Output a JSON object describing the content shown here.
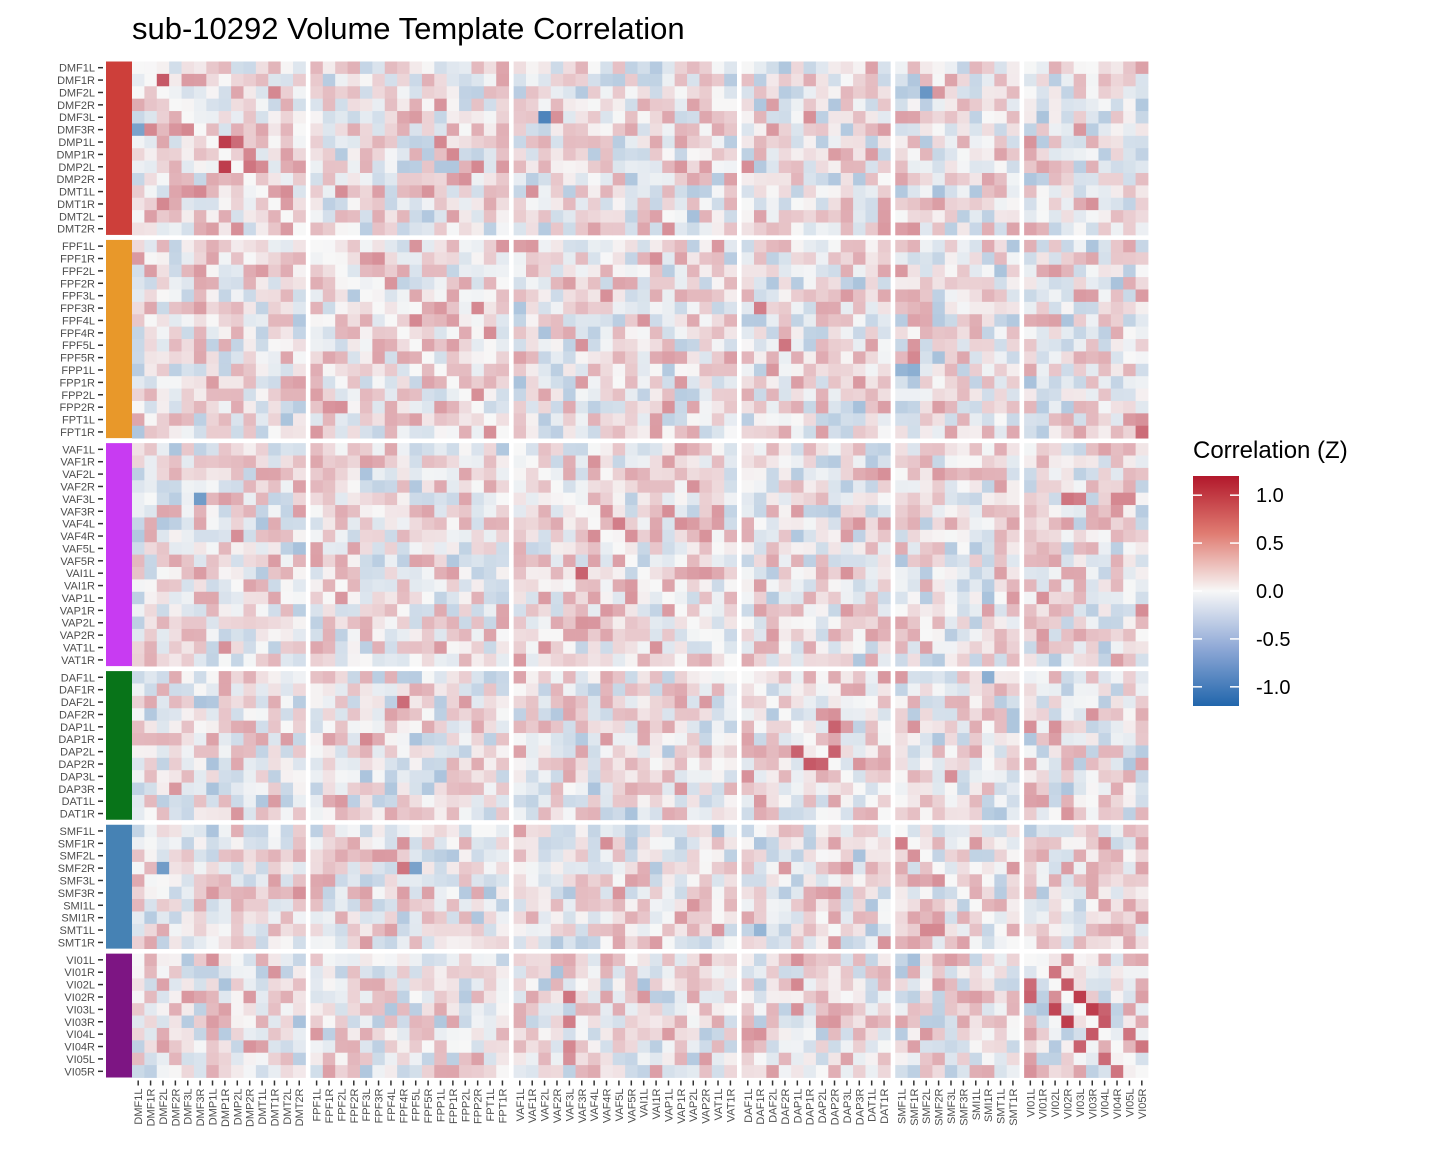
{
  "chart_data": {
    "type": "heatmap",
    "title": "sub-10292 Volume Template Correlation",
    "labels": [
      "DMF1L",
      "DMF1R",
      "DMF2L",
      "DMF2R",
      "DMF3L",
      "DMF3R",
      "DMP1L",
      "DMP1R",
      "DMP2L",
      "DMP2R",
      "DMT1L",
      "DMT1R",
      "DMT2L",
      "DMT2R",
      "FPF1L",
      "FPF1R",
      "FPF2L",
      "FPF2R",
      "FPF3L",
      "FPF3R",
      "FPF4L",
      "FPF4R",
      "FPF5L",
      "FPF5R",
      "FPP1L",
      "FPP1R",
      "FPP2L",
      "FPP2R",
      "FPT1L",
      "FPT1R",
      "VAF1L",
      "VAF1R",
      "VAF2L",
      "VAF2R",
      "VAF3L",
      "VAF3R",
      "VAF4L",
      "VAF4R",
      "VAF5L",
      "VAF5R",
      "VAI1L",
      "VAI1R",
      "VAP1L",
      "VAP1R",
      "VAP2L",
      "VAP2R",
      "VAT1L",
      "VAT1R",
      "DAF1L",
      "DAF1R",
      "DAF2L",
      "DAF2R",
      "DAP1L",
      "DAP1R",
      "DAP2L",
      "DAP2R",
      "DAP3L",
      "DAP3R",
      "DAT1L",
      "DAT1R",
      "SMF1L",
      "SMF1R",
      "SMF2L",
      "SMF2R",
      "SMF3L",
      "SMF3R",
      "SMI1L",
      "SMI1R",
      "SMT1L",
      "SMT1R",
      "VI01L",
      "VI01R",
      "VI02L",
      "VI02R",
      "VI03L",
      "VI03R",
      "VI04L",
      "VI04R",
      "VI05L",
      "VI05R"
    ],
    "groups": [
      {
        "count": 14,
        "color": "#cd3f3a"
      },
      {
        "count": 16,
        "color": "#e8982a"
      },
      {
        "count": 18,
        "color": "#c83bf2"
      },
      {
        "count": 12,
        "color": "#087419"
      },
      {
        "count": 10,
        "color": "#4682b4"
      },
      {
        "count": 10,
        "color": "#7d1583"
      }
    ],
    "color_scale": {
      "low": "#2166ac",
      "mid": "#f7f7f7",
      "high": "#b2182b",
      "limits": [
        -1.2,
        1.2
      ]
    },
    "legend": {
      "title": "Correlation (Z)",
      "position": "right",
      "ticks": [
        1.0,
        0.5,
        0.0,
        -0.5,
        -1.0
      ],
      "tick_labels": [
        "1.0",
        "0.5",
        "0.0",
        "-0.5",
        "-1.0"
      ]
    },
    "highlights": [
      {
        "r": "DMF1R",
        "c": "DMF2L",
        "v": 0.85
      },
      {
        "r": "DMF3L",
        "c": "VAF2L",
        "v": -0.95
      },
      {
        "r": "DMF3R",
        "c": "DMF1L",
        "v": -0.7
      },
      {
        "r": "DMF2L",
        "c": "SMF2L",
        "v": -0.8
      },
      {
        "r": "DMP1L",
        "c": "DMP1R",
        "v": 1.0
      },
      {
        "r": "DMP1L",
        "c": "DMP2L",
        "v": 0.75
      },
      {
        "r": "DMP1R",
        "c": "DMP2R",
        "v": 0.6
      },
      {
        "r": "DMP2L",
        "c": "DMP1R",
        "v": 1.0
      },
      {
        "r": "DMP2L",
        "c": "DMP2R",
        "v": 0.7
      },
      {
        "r": "DMP1L",
        "c": "FPP1L",
        "v": 0.6
      },
      {
        "r": "DMP1R",
        "c": "FPP1R",
        "v": 0.6
      },
      {
        "r": "DMP2L",
        "c": "FPP2R",
        "v": 0.6
      },
      {
        "r": "DMP2R",
        "c": "FPP2L",
        "v": 0.55
      },
      {
        "r": "DMT1L",
        "c": "VAF1R",
        "v": 0.55
      },
      {
        "r": "FPF3R",
        "c": "FPP2R",
        "v": 0.6
      },
      {
        "r": "FPF3R",
        "c": "DAF1R",
        "v": 0.65
      },
      {
        "r": "FPF5L",
        "c": "DAF2R",
        "v": 0.7
      },
      {
        "r": "FPF5L",
        "c": "VAF3R",
        "v": 0.55
      },
      {
        "r": "FPF5R",
        "c": "SMF1R",
        "v": 0.6
      },
      {
        "r": "FPP1L",
        "c": "SMF1L",
        "v": -0.55
      },
      {
        "r": "FPP1L",
        "c": "SMF1R",
        "v": -0.6
      },
      {
        "r": "FPT1R",
        "c": "VI05R",
        "v": 0.75
      },
      {
        "r": "VAF3L",
        "c": "DMF3R",
        "v": -0.75
      },
      {
        "r": "VAF4L",
        "c": "VAF5L",
        "v": 0.65
      },
      {
        "r": "VAF3L",
        "c": "VI02R",
        "v": 0.7
      },
      {
        "r": "VAF3L",
        "c": "VI03L",
        "v": 0.65
      },
      {
        "r": "VAF3L",
        "c": "VI04R",
        "v": 0.6
      },
      {
        "r": "VAF3L",
        "c": "VI05L",
        "v": 0.6
      },
      {
        "r": "VAI1L",
        "c": "VAF3R",
        "v": 0.8
      },
      {
        "r": "VAF2R",
        "c": "VAP2L",
        "v": 0.55
      },
      {
        "r": "DAF2L",
        "c": "FPF4R",
        "v": 0.75
      },
      {
        "r": "DAP1L",
        "c": "DAP2R",
        "v": 0.8
      },
      {
        "r": "DAP1R",
        "c": "FPF3L",
        "v": 0.6
      },
      {
        "r": "DAP2L",
        "c": "DAP2R",
        "v": 0.8
      },
      {
        "r": "DAP2L",
        "c": "DAP1L",
        "v": 0.8
      },
      {
        "r": "DAP2R",
        "c": "DAP1R",
        "v": 0.85
      },
      {
        "r": "DAP2R",
        "c": "DAP2L",
        "v": 0.8
      },
      {
        "r": "DAP1L",
        "c": "VI01L",
        "v": 0.55
      },
      {
        "r": "DAP1L",
        "c": "VI02L",
        "v": 0.55
      },
      {
        "r": "DAP1R",
        "c": "VI01L",
        "v": -0.4
      },
      {
        "r": "SMF2R",
        "c": "DMF2L",
        "v": -0.75
      },
      {
        "r": "SMF2R",
        "c": "FPF5L",
        "v": -0.7
      },
      {
        "r": "SMF2R",
        "c": "FPF4R",
        "v": 0.7
      },
      {
        "r": "SMF1R",
        "c": "SMF1L",
        "v": 0.65
      },
      {
        "r": "SMF2L",
        "c": "SMF1R",
        "v": 0.55
      },
      {
        "r": "SMF3L",
        "c": "SMF2R",
        "v": 0.55
      },
      {
        "r": "SMT1L",
        "c": "DAF1R",
        "v": -0.55
      },
      {
        "r": "DAF1L",
        "c": "SMI1R",
        "v": -0.6
      },
      {
        "r": "VI01R",
        "c": "VI02L",
        "v": 0.7
      },
      {
        "r": "VI02L",
        "c": "VI01L",
        "v": 0.75
      },
      {
        "r": "VI02L",
        "c": "VI02R",
        "v": 0.85
      },
      {
        "r": "VI02R",
        "c": "VI01L",
        "v": 0.8
      },
      {
        "r": "VI02R",
        "c": "VI03L",
        "v": 1.0
      },
      {
        "r": "VI03L",
        "c": "VI02L",
        "v": 0.95
      },
      {
        "r": "VI03L",
        "c": "VI03R",
        "v": 1.0
      },
      {
        "r": "VI03L",
        "c": "VI04L",
        "v": 0.8
      },
      {
        "r": "VI03R",
        "c": "VI02R",
        "v": 1.0
      },
      {
        "r": "VI03R",
        "c": "VI04L",
        "v": 0.85
      },
      {
        "r": "VI04L",
        "c": "VI03R",
        "v": 0.85
      },
      {
        "r": "VI04L",
        "c": "VI05L",
        "v": 0.7
      },
      {
        "r": "VI04R",
        "c": "VI03L",
        "v": 0.8
      },
      {
        "r": "VI04R",
        "c": "VI05R",
        "v": 0.7
      },
      {
        "r": "VI05L",
        "c": "VI04L",
        "v": 0.75
      },
      {
        "r": "VI05R",
        "c": "VI04R",
        "v": 0.7
      },
      {
        "r": "VI01L",
        "c": "DMP1L",
        "v": 0.55
      },
      {
        "r": "VI02R",
        "c": "VAF3L",
        "v": 0.7
      },
      {
        "r": "VI03R",
        "c": "VAF3L",
        "v": 0.65
      },
      {
        "r": "VI04R",
        "c": "VAF3L",
        "v": 0.6
      },
      {
        "r": "VI05L",
        "c": "VAF3L",
        "v": 0.55
      },
      {
        "r": "VI01L",
        "c": "DAP1L",
        "v": 0.55
      },
      {
        "r": "VI02L",
        "c": "DAP1L",
        "v": 0.6
      },
      {
        "r": "VI03L",
        "c": "DAP1L",
        "v": 0.55
      }
    ]
  }
}
